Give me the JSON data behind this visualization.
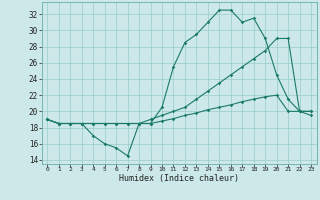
{
  "title": "",
  "xlabel": "Humidex (Indice chaleur)",
  "bg_color": "#cce8e8",
  "line_color": "#1a7a6a",
  "grid_color": "#99cccc",
  "xlim": [
    -0.5,
    23.5
  ],
  "ylim": [
    13.5,
    33.5
  ],
  "xticks": [
    0,
    1,
    2,
    3,
    4,
    5,
    6,
    7,
    8,
    9,
    10,
    11,
    12,
    13,
    14,
    15,
    16,
    17,
    18,
    19,
    20,
    21,
    22,
    23
  ],
  "yticks": [
    14,
    16,
    18,
    20,
    22,
    24,
    26,
    28,
    30,
    32
  ],
  "line1_x": [
    0,
    1,
    2,
    3,
    4,
    5,
    6,
    7,
    8,
    9,
    10,
    11,
    12,
    13,
    14,
    15,
    16,
    17,
    18,
    19,
    20,
    21,
    22,
    23
  ],
  "line1_y": [
    19,
    18.5,
    18.5,
    18.5,
    17,
    16,
    15.5,
    14.5,
    18.5,
    18.5,
    20.5,
    25.5,
    28.5,
    29.5,
    31,
    32.5,
    32.5,
    31,
    31.5,
    29,
    24.5,
    21.5,
    20,
    19.5
  ],
  "line2_x": [
    0,
    1,
    2,
    3,
    4,
    5,
    6,
    7,
    8,
    9,
    10,
    11,
    12,
    13,
    14,
    15,
    16,
    17,
    18,
    19,
    20,
    21,
    22,
    23
  ],
  "line2_y": [
    19,
    18.5,
    18.5,
    18.5,
    18.5,
    18.5,
    18.5,
    18.5,
    18.5,
    19.0,
    19.5,
    20.0,
    20.5,
    21.5,
    22.5,
    23.5,
    24.5,
    25.5,
    26.5,
    27.5,
    29.0,
    29.0,
    20,
    20
  ],
  "line3_x": [
    0,
    1,
    2,
    3,
    4,
    5,
    6,
    7,
    8,
    9,
    10,
    11,
    12,
    13,
    14,
    15,
    16,
    17,
    18,
    19,
    20,
    21,
    22,
    23
  ],
  "line3_y": [
    19,
    18.5,
    18.5,
    18.5,
    18.5,
    18.5,
    18.5,
    18.5,
    18.5,
    18.5,
    18.8,
    19.1,
    19.5,
    19.8,
    20.2,
    20.5,
    20.8,
    21.2,
    21.5,
    21.8,
    22.0,
    20,
    20,
    20
  ]
}
